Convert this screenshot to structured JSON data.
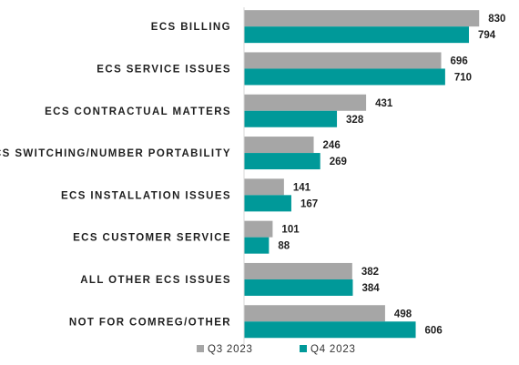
{
  "chart_data": {
    "type": "bar",
    "orientation": "horizontal",
    "categories": [
      "ECS BILLING",
      "ECS SERVICE ISSUES",
      "ECS CONTRACTUAL MATTERS",
      "ECS SWITCHING/NUMBER PORTABILITY",
      "ECS INSTALLATION ISSUES",
      "ECS CUSTOMER SERVICE",
      "ALL OTHER ECS ISSUES",
      "NOT FOR COMREG/OTHER"
    ],
    "series": [
      {
        "name": "Q3 2023",
        "color": "#a6a6a6",
        "values": [
          830,
          696,
          431,
          246,
          141,
          101,
          382,
          498
        ]
      },
      {
        "name": "Q4 2023",
        "color": "#009999",
        "values": [
          794,
          710,
          328,
          269,
          167,
          88,
          384,
          606
        ]
      }
    ],
    "xlim": [
      0,
      900
    ],
    "grid": false,
    "data_labels": true,
    "legend_position": "bottom"
  }
}
